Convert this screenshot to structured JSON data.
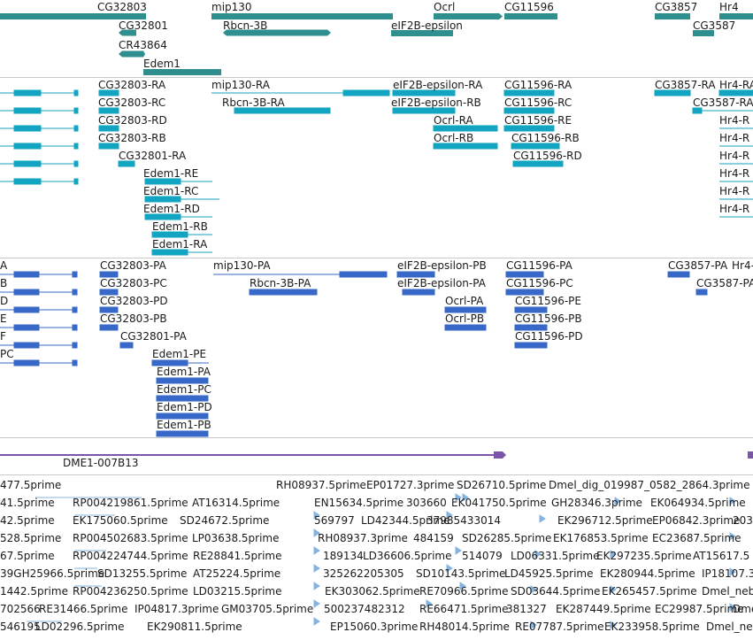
{
  "colors": {
    "gene": "#2f8f8f",
    "mrna": "#12a5c2",
    "cds": "#3869c9",
    "clone": "#7a55a8",
    "est": "#86b4e0"
  },
  "genes": [
    "CG32803",
    "mip130",
    "Ocrl",
    "CG11596",
    "CG3857",
    "Hr4",
    "CG32801",
    "Rbcn-3B",
    "eIF2B-epsilon",
    "CG3587",
    "CR43864",
    "Edem1"
  ],
  "transcripts": [
    "CG32803-RA",
    "mip130-RA",
    "eIF2B-epsilon-RA",
    "CG11596-RA",
    "CG3857-RA",
    "Hr4-RA",
    "CG32803-RC",
    "Rbcn-3B-RA",
    "eIF2B-epsilon-RB",
    "CG11596-RC",
    "CG3587-RA",
    "CG32803-RD",
    "Ocrl-RA",
    "CG11596-RE",
    "Hr4-R",
    "CG32803-RB",
    "Ocrl-RB",
    "CG11596-RB",
    "Hr4-R",
    "CG32801-RA",
    "CG11596-RD",
    "Hr4-R",
    "Edem1-RE",
    "Hr4-R",
    "Edem1-RC",
    "Hr4-R",
    "Edem1-RD",
    "Hr4-R",
    "Edem1-RB",
    "Edem1-RA"
  ],
  "cds": [
    "A",
    "CG32803-PA",
    "mip130-PA",
    "eIF2B-epsilon-PB",
    "CG11596-PA",
    "CG3857-PA",
    "Hr4-P",
    "B",
    "CG32803-PC",
    "Rbcn-3B-PA",
    "eIF2B-epsilon-PA",
    "CG11596-PC",
    "CG3587-PA",
    "D",
    "CG32803-PD",
    "Ocrl-PA",
    "CG11596-PE",
    "E",
    "CG32803-PB",
    "Ocrl-PB",
    "CG11596-PB",
    "F",
    "CG32801-PA",
    "CG11596-PD",
    "PC",
    "Edem1-PE",
    "Edem1-PA",
    "Edem1-PC",
    "Edem1-PD",
    "Edem1-PB"
  ],
  "clones": [
    "DME1-007B13"
  ],
  "ests": [
    "477.5prime",
    "RH08937.5prime",
    "EP01727.3prime",
    "SD26710.5prime",
    "Dmel_dig_019987_0582_2864.3prime",
    "41.5prime",
    "RP004219861.5prime",
    "AT16314.5prime",
    "EN15634.5prime",
    "303660",
    "EK041750.5prime",
    "GH28346.3prime",
    "EK064934.5prime",
    "42.5prime",
    "EK175060.5prime",
    "SD24672.5prime",
    "569797",
    "LD42344.5prime",
    "37985433014",
    "EK296712.5prime",
    "EP06842.3prime",
    "203",
    "528.5prime",
    "RP004502683.5prime",
    "LP03638.5prime",
    "RH08937.3prime",
    "484159",
    "SD26285.5prime",
    "EK176853.5prime",
    "EC23687.5prime",
    "67.5prime",
    "RP004224744.5prime",
    "RE28841.5prime",
    "189134",
    "LD36606.5prime",
    "514079",
    "LD06331.5prime",
    "EK297235.5prime",
    "AT15617.5",
    "39GH25966.5prime",
    "SD13255.5prime",
    "AT25224.5prime",
    "325262205305",
    "SD10143.5prime",
    "LD45925.5prime",
    "EK280944.5prime",
    "IP18107.3",
    "1442.5prime",
    "RP004236250.5prime",
    "LD03215.5prime",
    "EK303062.5prime",
    "RE70966.5prime",
    "SD03644.5prime",
    "EK265457.5prime",
    "Dmel_neb",
    "702566",
    "RE31466.5prime",
    "IP04817.3prime",
    "GM03705.5prime",
    "500237482312",
    "RE66471.5prime",
    "381327",
    "EK287449.5prime",
    "EC29987.5prime",
    "Dmel_neb",
    "546195",
    "LD02296.5prime",
    "EK290811.5prime",
    "EP15060.3prime",
    "RH48014.5prime",
    "RE07787.5prime",
    "EK233958.5prime",
    "Dmel_ne"
  ]
}
